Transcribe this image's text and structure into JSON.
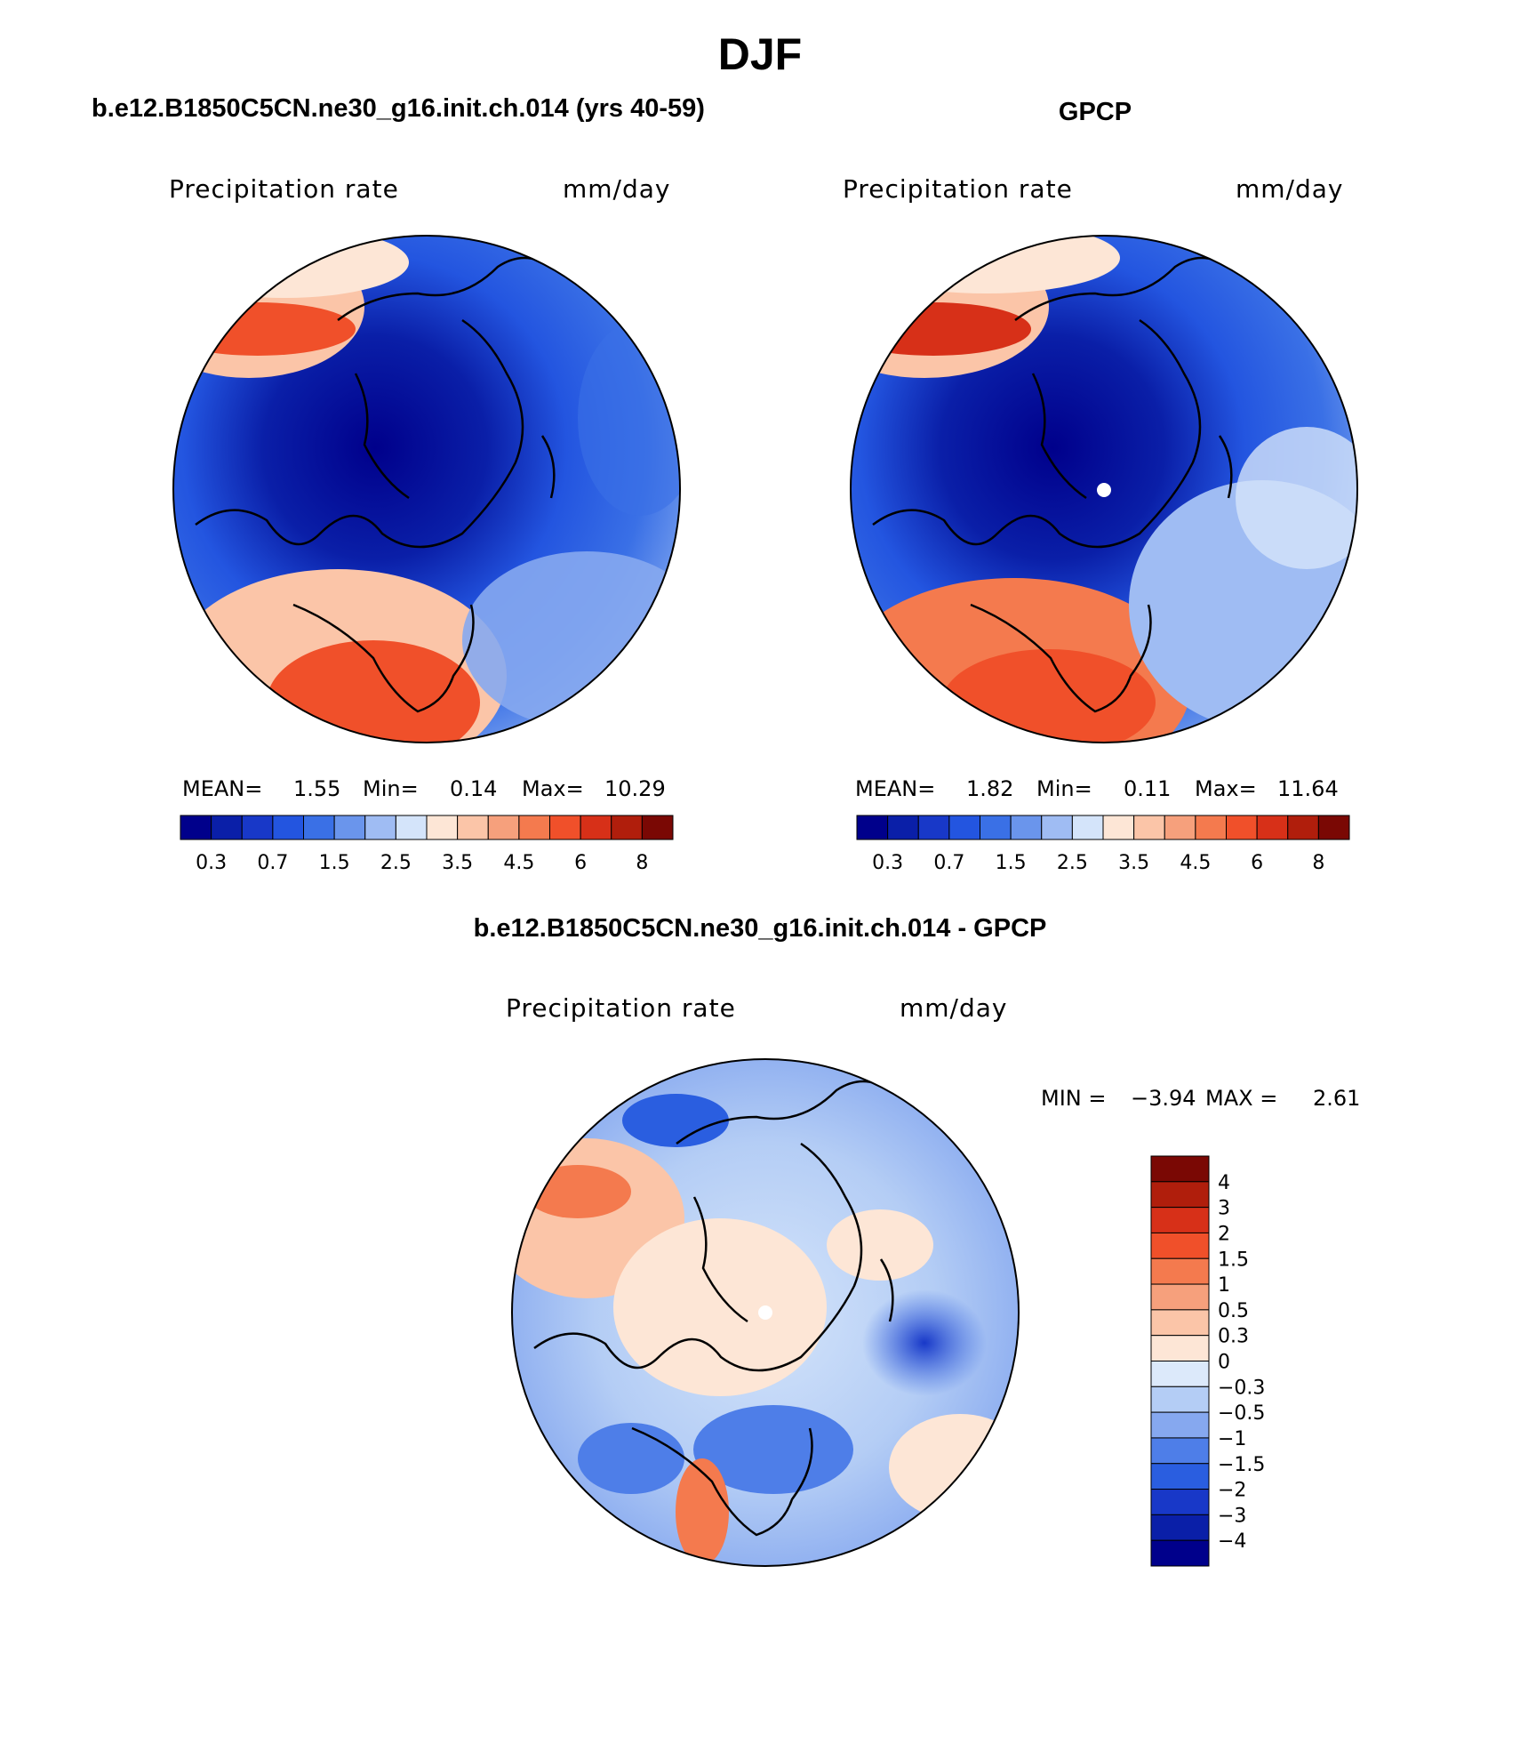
{
  "title": "DJF",
  "panels": [
    {
      "case": "b.e12.B1850C5CN.ne30_g16.init.ch.014 (yrs 40-59)",
      "variable": "Precipitation rate",
      "units": "mm/day",
      "stats": {
        "mean_label": "MEAN=",
        "mean": "1.55",
        "min_label": "Min=",
        "min": "0.14",
        "max_label": "Max=",
        "max": "10.29"
      }
    },
    {
      "case": "GPCP",
      "variable": "Precipitation rate",
      "units": "mm/day",
      "stats": {
        "mean_label": "MEAN=",
        "mean": "1.82",
        "min_label": "Min=",
        "min": "0.11",
        "max_label": "Max=",
        "max": "11.64"
      }
    },
    {
      "case": "b.e12.B1850C5CN.ne30_g16.init.ch.014 - GPCP",
      "variable": "Precipitation rate",
      "units": "mm/day",
      "stats": {
        "min_label": "MIN =",
        "min": "−3.94",
        "max_label": "MAX =",
        "max": "2.61"
      }
    }
  ],
  "colorbar_abs": {
    "colors": [
      "#00008b",
      "#0a1fa8",
      "#1838c8",
      "#2355e0",
      "#3a70e6",
      "#6a95ec",
      "#9fbcf3",
      "#d4e4fa",
      "#fde6d6",
      "#fbc5a8",
      "#f6a07c",
      "#f47a4e",
      "#f0502a",
      "#d73018",
      "#b01e0c",
      "#7a0804"
    ],
    "labels": [
      "0.3",
      "0.7",
      "1.5",
      "2.5",
      "3.5",
      "4.5",
      "6",
      "8"
    ]
  },
  "colorbar_diff": {
    "colors": [
      "#7a0804",
      "#b01e0c",
      "#d73018",
      "#f0502a",
      "#f47a4e",
      "#f6a07c",
      "#fbc5a8",
      "#fde6d6",
      "#dce9fa",
      "#b4cdf5",
      "#86a8ef",
      "#4e7ee8",
      "#2a5ee0",
      "#1838c8",
      "#0a1fa8",
      "#00008b"
    ],
    "labels": [
      "4",
      "3",
      "2",
      "1.5",
      "1",
      "0.5",
      "0.3",
      "0",
      "−0.3",
      "−0.5",
      "−1",
      "−1.5",
      "−2",
      "−3",
      "−4"
    ]
  }
}
